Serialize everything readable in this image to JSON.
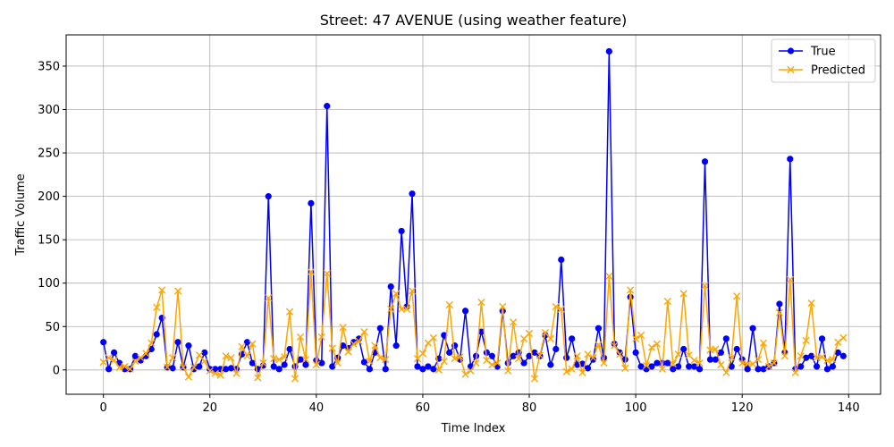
{
  "chart_data": {
    "type": "line",
    "title": "Street: 47 AVENUE (using weather feature)",
    "xlabel": "Time Index",
    "ylabel": "Traffic Volume",
    "xlim": [
      -7,
      146
    ],
    "ylim": [
      -28,
      386
    ],
    "x_ticks": [
      0,
      20,
      40,
      60,
      80,
      100,
      120,
      140
    ],
    "y_ticks": [
      0,
      50,
      100,
      150,
      200,
      250,
      300,
      350
    ],
    "grid": true,
    "legend_position": "upper right",
    "series": [
      {
        "name": "True",
        "color": "#0000ff",
        "marker": "circle",
        "values": [
          32,
          1,
          20,
          8,
          1,
          1,
          16,
          11,
          16,
          24,
          41,
          60,
          3,
          2,
          32,
          3,
          28,
          1,
          4,
          20,
          1,
          1,
          1,
          1,
          2,
          1,
          18,
          32,
          8,
          1,
          5,
          200,
          4,
          1,
          6,
          24,
          4,
          12,
          6,
          192,
          11,
          8,
          304,
          4,
          14,
          28,
          25,
          32,
          36,
          9,
          1,
          20,
          48,
          1,
          96,
          28,
          160,
          73,
          203,
          4,
          1,
          4,
          1,
          13,
          40,
          20,
          28,
          12,
          68,
          4,
          16,
          44,
          20,
          16,
          4,
          68,
          8,
          16,
          20,
          8,
          16,
          20,
          16,
          40,
          6,
          24,
          127,
          14,
          36,
          6,
          7,
          2,
          12,
          48,
          14,
          367,
          30,
          20,
          12,
          84,
          20,
          4,
          1,
          4,
          8,
          8,
          8,
          1,
          4,
          24,
          4,
          4,
          1,
          240,
          12,
          12,
          20,
          36,
          4,
          24,
          12,
          1,
          48,
          1,
          1,
          4,
          8,
          76,
          20,
          243,
          1,
          4,
          14,
          16,
          4,
          36,
          1,
          4,
          20,
          16
        ]
      },
      {
        "name": "Predicted",
        "color": "#ffa500",
        "marker": "x",
        "values": [
          9,
          14,
          11,
          3,
          4,
          1,
          10,
          14,
          19,
          31,
          72,
          92,
          3,
          14,
          91,
          3,
          -8,
          3,
          17,
          10,
          -1,
          -4,
          -6,
          16,
          14,
          -4,
          27,
          16,
          30,
          -9,
          8,
          83,
          13,
          12,
          15,
          67,
          -10,
          38,
          12,
          113,
          6,
          38,
          111,
          25,
          8,
          49,
          21,
          30,
          33,
          44,
          10,
          28,
          14,
          12,
          70,
          88,
          70,
          70,
          91,
          13,
          19,
          31,
          37,
          0,
          10,
          75,
          13,
          15,
          -5,
          -1,
          8,
          78,
          11,
          6,
          8,
          73,
          -1,
          55,
          13,
          36,
          42,
          -10,
          17,
          43,
          36,
          73,
          70,
          -2,
          1,
          16,
          -3,
          18,
          14,
          29,
          8,
          108,
          28,
          18,
          2,
          92,
          36,
          40,
          5,
          26,
          30,
          1,
          79,
          7,
          18,
          88,
          17,
          11,
          8,
          97,
          23,
          24,
          6,
          -3,
          14,
          85,
          8,
          7,
          7,
          12,
          31,
          4,
          8,
          66,
          16,
          104,
          -3,
          16,
          34,
          77,
          14,
          15,
          11,
          12,
          32,
          37
        ]
      }
    ]
  }
}
